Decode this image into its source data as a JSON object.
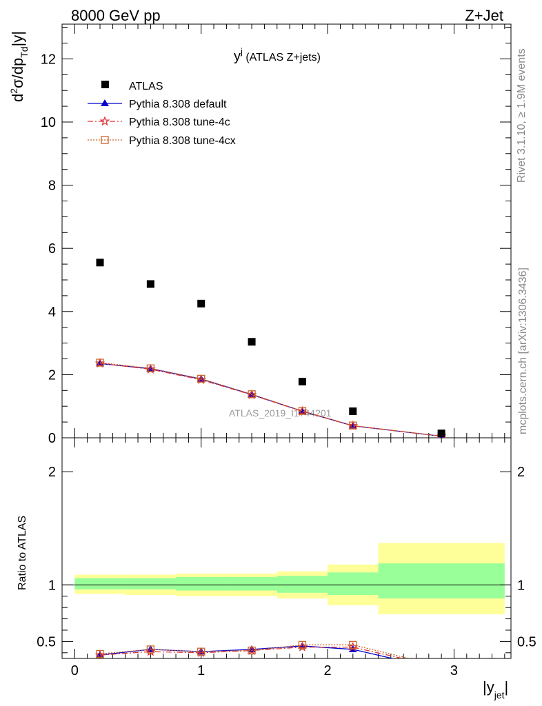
{
  "header": {
    "left": "8000 GeV pp",
    "right": "Z+Jet"
  },
  "side": {
    "rivet": "Rivet 3.1.10, ≥ 1.9M events",
    "mcplots": "mcplots.cern.ch [arXiv:1306.3436]"
  },
  "chart_data": {
    "type": "scatter",
    "title_main": "y",
    "title_sup": "j",
    "title_rest": " (ATLAS Z+jets)",
    "watermark": "ATLAS_2019_I1744201",
    "ylabel_top": {
      "pre": "d",
      "sup": "2",
      "mid": "σ/dp",
      "sub": "Td",
      "post": "|y|"
    },
    "ylabel_bottom": "Ratio to ATLAS",
    "xlabel": {
      "main": "|y",
      "sub": "jet",
      "post": "|"
    },
    "xlim": [
      -0.1,
      3.45
    ],
    "ylim_top": [
      0,
      13.1
    ],
    "ylim_bottom": [
      0.35,
      2.3
    ],
    "x_ticks": [
      0,
      1,
      2,
      3
    ],
    "y_ticks_top": [
      0,
      2,
      4,
      6,
      8,
      10,
      12
    ],
    "y_ticks_bottom": [
      "0.5",
      "1",
      "2"
    ],
    "legend": [
      "ATLAS",
      "Pythia 8.308 default",
      "Pythia 8.308 tune-4c",
      "Pythia 8.308 tune-4cx"
    ],
    "colors": {
      "data": "#000000",
      "default": "#0000cc",
      "tune4c": "#e03030",
      "tune4cx": "#c86428",
      "band_inner": "#99ff99",
      "band_outer": "#ffff99"
    },
    "atlas": {
      "x": [
        0.2,
        0.6,
        1.0,
        1.4,
        1.8,
        2.2,
        2.9
      ],
      "y": [
        5.55,
        4.87,
        4.25,
        3.04,
        1.78,
        0.84,
        0.14
      ]
    },
    "series": [
      {
        "name": "Pythia 8.308 default",
        "marker": "triangle",
        "x": [
          0.2,
          0.6,
          1.0,
          1.4,
          1.8,
          2.2,
          2.9
        ],
        "y": [
          2.35,
          2.19,
          1.86,
          1.37,
          0.84,
          0.38,
          0.05
        ],
        "ratio_x": [
          0.2,
          0.6,
          1.0,
          1.4,
          1.8,
          2.2,
          2.9
        ],
        "ratio": [
          0.38,
          0.43,
          0.41,
          0.43,
          0.46,
          0.43,
          0.25
        ]
      },
      {
        "name": "Pythia 8.308 tune-4c",
        "marker": "star",
        "x": [
          0.2,
          0.6,
          1.0,
          1.4,
          1.8,
          2.2,
          2.9
        ],
        "y": [
          2.36,
          2.17,
          1.84,
          1.36,
          0.84,
          0.38,
          0.05
        ],
        "ratio_x": [
          0.2,
          0.6,
          1.0,
          1.4,
          1.8,
          2.2,
          2.9
        ],
        "ratio": [
          0.38,
          0.41,
          0.4,
          0.42,
          0.45,
          0.45,
          0.27
        ]
      },
      {
        "name": "Pythia 8.308 tune-4cx",
        "marker": "square-open",
        "x": [
          0.2,
          0.6,
          1.0,
          1.4,
          1.8,
          2.2,
          2.9
        ],
        "y": [
          2.38,
          2.2,
          1.87,
          1.38,
          0.85,
          0.39,
          0.05
        ],
        "ratio_x": [
          0.2,
          0.6,
          1.0,
          1.4,
          1.8,
          2.2,
          2.9
        ],
        "ratio": [
          0.39,
          0.43,
          0.41,
          0.42,
          0.47,
          0.47,
          0.28
        ]
      }
    ],
    "bands": [
      {
        "x0": 0.0,
        "x1": 0.4,
        "inner": [
          0.96,
          1.06
        ],
        "outer": [
          0.92,
          1.09
        ]
      },
      {
        "x0": 0.4,
        "x1": 0.8,
        "inner": [
          0.96,
          1.06
        ],
        "outer": [
          0.91,
          1.09
        ]
      },
      {
        "x0": 0.8,
        "x1": 1.2,
        "inner": [
          0.95,
          1.07
        ],
        "outer": [
          0.9,
          1.1
        ]
      },
      {
        "x0": 1.2,
        "x1": 1.6,
        "inner": [
          0.95,
          1.07
        ],
        "outer": [
          0.9,
          1.1
        ]
      },
      {
        "x0": 1.6,
        "x1": 2.0,
        "inner": [
          0.93,
          1.08
        ],
        "outer": [
          0.88,
          1.12
        ]
      },
      {
        "x0": 2.0,
        "x1": 2.4,
        "inner": [
          0.91,
          1.11
        ],
        "outer": [
          0.82,
          1.18
        ]
      },
      {
        "x0": 2.4,
        "x1": 3.4,
        "inner": [
          0.88,
          1.19
        ],
        "outer": [
          0.74,
          1.37
        ]
      }
    ]
  }
}
